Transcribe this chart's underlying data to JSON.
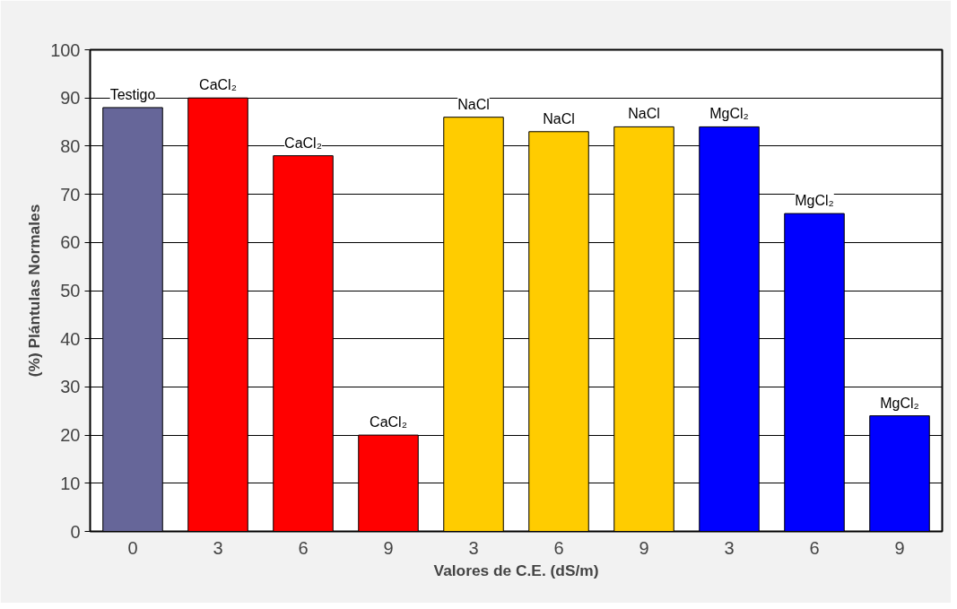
{
  "chart_data": {
    "type": "bar",
    "xlabel": "Valores de C.E. (dS/m)",
    "ylabel": "(%) Plántulas Normales",
    "categories": [
      "0",
      "3",
      "6",
      "9",
      "3",
      "6",
      "9",
      "3",
      "6",
      "9"
    ],
    "values": [
      88,
      90,
      78,
      20,
      86,
      83,
      84,
      84,
      66,
      24
    ],
    "colors": [
      "#666699",
      "#ff0000",
      "#ff0000",
      "#ff0000",
      "#ffcc00",
      "#ffcc00",
      "#ffcc00",
      "#0000ff",
      "#0000ff",
      "#0000ff"
    ],
    "value_labels": [
      "Testigo",
      "CaCl₂",
      "CaCl₂",
      "CaCl₂",
      "NaCl",
      "NaCl",
      "NaCl",
      "MgCl₂",
      "MgCl₂",
      "MgCl₂"
    ],
    "ylim": [
      0,
      100
    ],
    "yticks": [
      0,
      10,
      20,
      30,
      40,
      50,
      60,
      70,
      80,
      90,
      100
    ],
    "grid": "y"
  }
}
